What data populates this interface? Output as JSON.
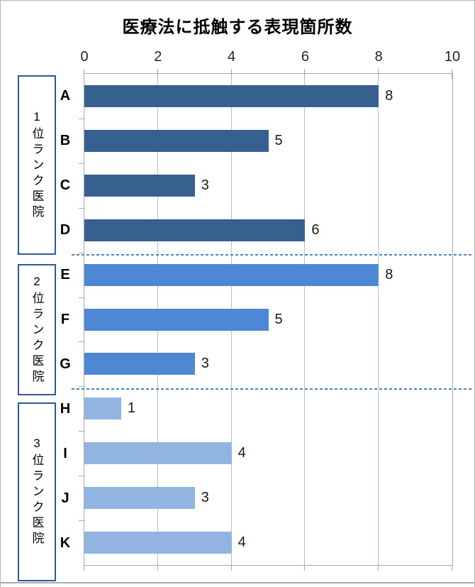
{
  "chart_data": {
    "type": "bar",
    "orientation": "horizontal",
    "title": "医療法に抵触する表現箇所数",
    "categories": [
      "A",
      "B",
      "C",
      "D",
      "E",
      "F",
      "G",
      "H",
      "I",
      "J",
      "K"
    ],
    "values": [
      8,
      5,
      3,
      6,
      8,
      5,
      3,
      1,
      4,
      3,
      4
    ],
    "xlabel": "",
    "ylabel": "",
    "xlim": [
      0,
      10
    ],
    "x_ticks": [
      0,
      2,
      4,
      6,
      8,
      10
    ],
    "grid": true,
    "legend": false,
    "data_labels": true,
    "groups": [
      {
        "label": "1位ランク医院",
        "color": "#36608F",
        "items": [
          {
            "name": "A",
            "value": 8
          },
          {
            "name": "B",
            "value": 5
          },
          {
            "name": "C",
            "value": 3
          },
          {
            "name": "D",
            "value": 6
          }
        ]
      },
      {
        "label": "2位ランク医院",
        "color": "#4E87D3",
        "items": [
          {
            "name": "E",
            "value": 8
          },
          {
            "name": "F",
            "value": 5
          },
          {
            "name": "G",
            "value": 3
          }
        ]
      },
      {
        "label": "3位ランク医院",
        "color": "#92B4E0",
        "items": [
          {
            "name": "H",
            "value": 1
          },
          {
            "name": "I",
            "value": 4
          },
          {
            "name": "J",
            "value": 3
          },
          {
            "name": "K",
            "value": 4
          }
        ]
      }
    ],
    "separator_line_color": "#4F81BD",
    "group_box_border_color": "#2E5B94",
    "gridline_color": "#BDBDBD",
    "axis_color": "#A9A9A9"
  }
}
